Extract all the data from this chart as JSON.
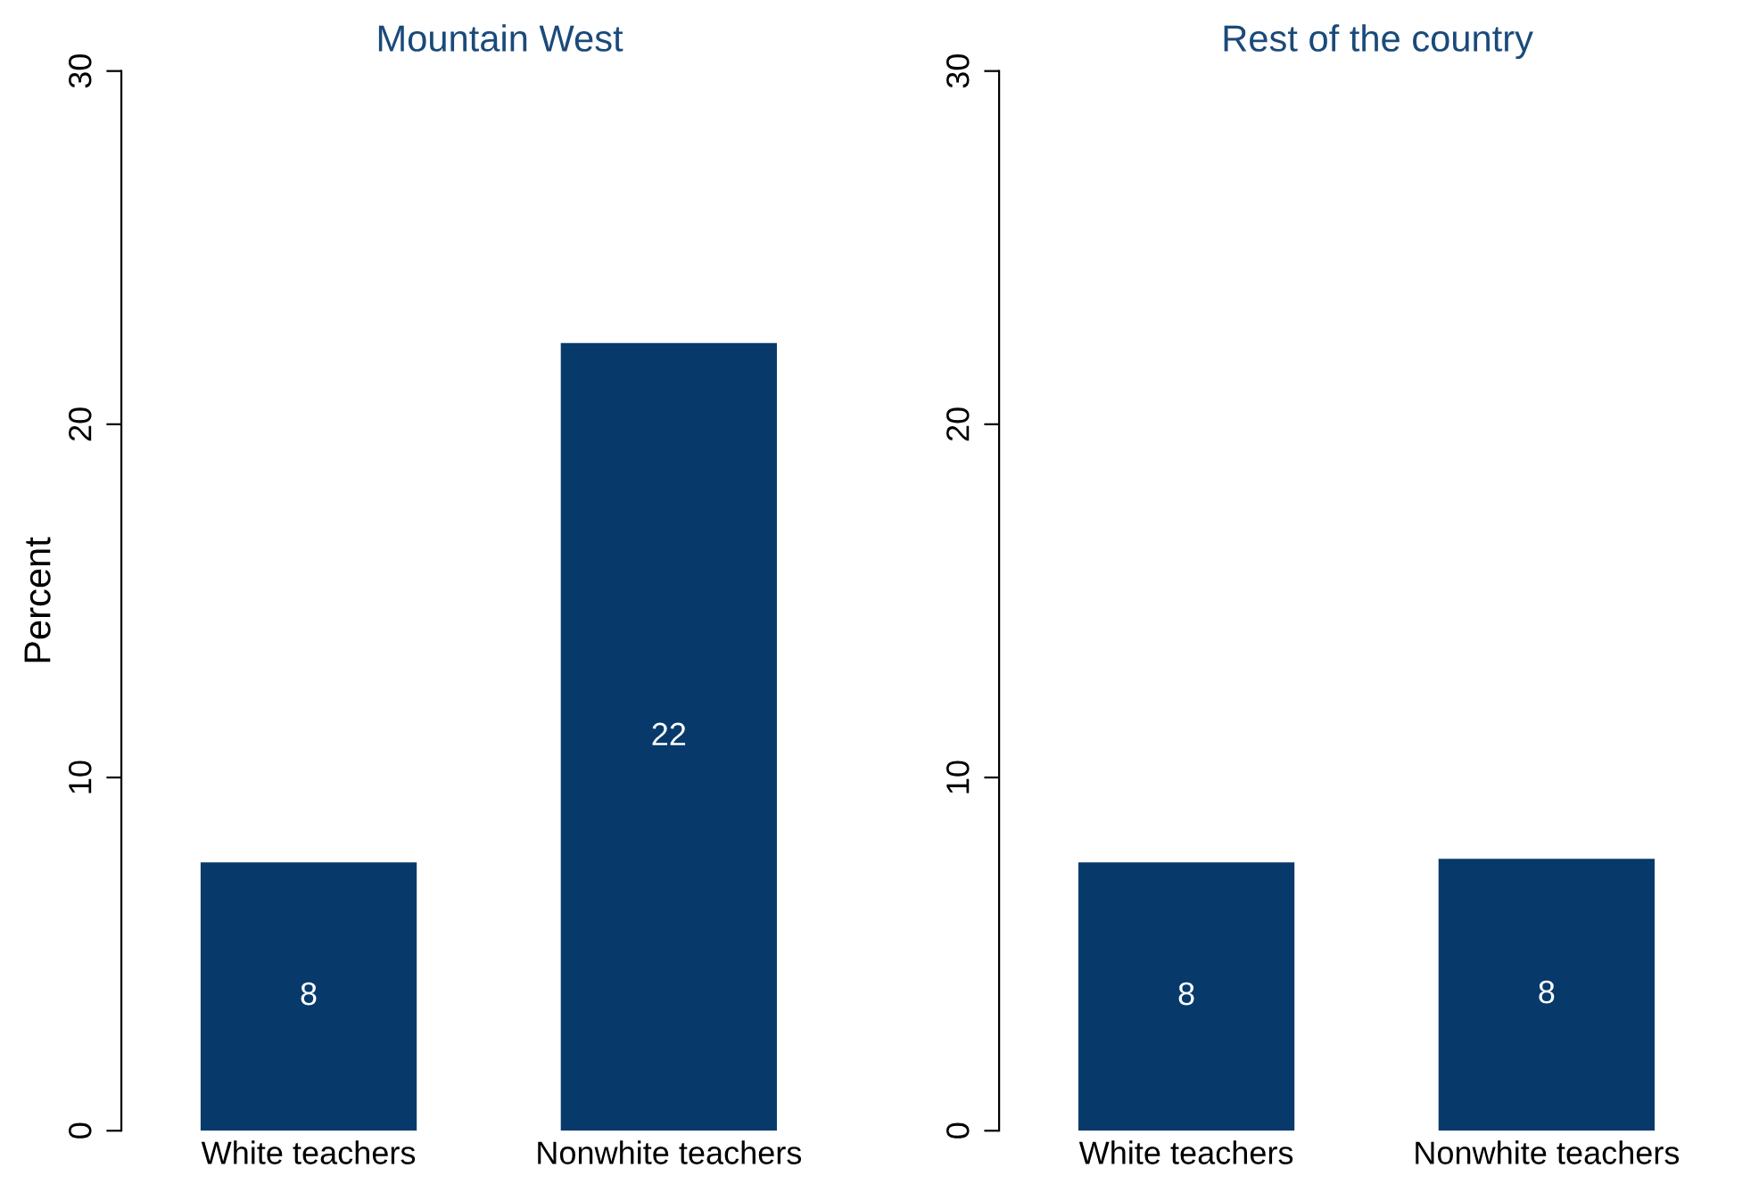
{
  "chart_data": [
    {
      "type": "bar",
      "title": "Mountain West",
      "ylabel": "Percent",
      "categories": [
        "White teachers",
        "Nonwhite teachers"
      ],
      "values": [
        7.6,
        22.3
      ],
      "value_labels": [
        "8",
        "22"
      ],
      "color": "#073a6b",
      "ylim": [
        0,
        30
      ],
      "yticks": [
        0,
        10,
        20,
        30
      ],
      "grid": false,
      "legend": false
    },
    {
      "type": "bar",
      "title": "Rest of the country",
      "categories": [
        "White teachers",
        "Nonwhite teachers"
      ],
      "values": [
        7.6,
        7.7
      ],
      "value_labels": [
        "8",
        "8"
      ],
      "color": "#073a6b",
      "ylim": [
        0,
        30
      ],
      "yticks": [
        0,
        10,
        20,
        30
      ],
      "grid": false,
      "legend": false
    }
  ]
}
